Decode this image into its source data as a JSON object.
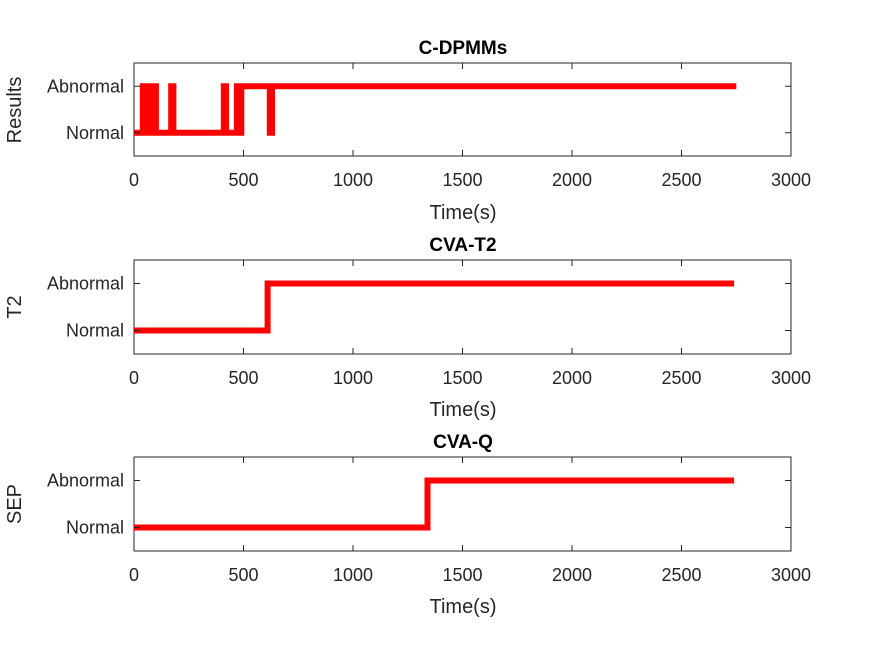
{
  "chart_data": [
    {
      "type": "line",
      "title": "C-DPMMs",
      "xlabel": "Time(s)",
      "ylabel": "Results",
      "xlim": [
        0,
        3000
      ],
      "xticks": [
        0,
        500,
        1000,
        1500,
        2000,
        2500,
        3000
      ],
      "yticks": [
        "Normal",
        "Abnormal"
      ],
      "ylim": [
        -0.5,
        1.5
      ],
      "line_color": "#ff0000",
      "grid": false,
      "x": [
        0,
        40,
        40,
        50,
        50,
        70,
        70,
        80,
        80,
        90,
        90,
        100,
        100,
        170,
        170,
        180,
        180,
        410,
        410,
        420,
        420,
        470,
        470,
        480,
        480,
        490,
        490,
        620,
        620,
        630,
        630,
        2750
      ],
      "y": [
        0,
        0,
        1,
        1,
        0,
        0,
        1,
        1,
        0,
        0,
        1,
        1,
        0,
        0,
        1,
        1,
        0,
        0,
        1,
        1,
        0,
        0,
        1,
        1,
        0,
        0,
        1,
        1,
        0,
        0,
        1,
        1
      ]
    },
    {
      "type": "line",
      "title": "CVA-T2",
      "xlabel": "Time(s)",
      "ylabel": "T2",
      "xlim": [
        0,
        3000
      ],
      "xticks": [
        0,
        500,
        1000,
        1500,
        2000,
        2500,
        3000
      ],
      "yticks": [
        "Normal",
        "Abnormal"
      ],
      "ylim": [
        -0.5,
        1.5
      ],
      "line_color": "#ff0000",
      "grid": false,
      "x": [
        0,
        610,
        610,
        2740
      ],
      "y": [
        0,
        0,
        1,
        1
      ]
    },
    {
      "type": "line",
      "title": "CVA-Q",
      "xlabel": "Time(s)",
      "ylabel": "SEP",
      "xlim": [
        0,
        3000
      ],
      "xticks": [
        0,
        500,
        1000,
        1500,
        2000,
        2500,
        3000
      ],
      "yticks": [
        "Normal",
        "Abnormal"
      ],
      "ylim": [
        -0.5,
        1.5
      ],
      "line_color": "#ff0000",
      "grid": false,
      "x": [
        0,
        1340,
        1340,
        2740
      ],
      "y": [
        0,
        0,
        1,
        1
      ]
    }
  ]
}
